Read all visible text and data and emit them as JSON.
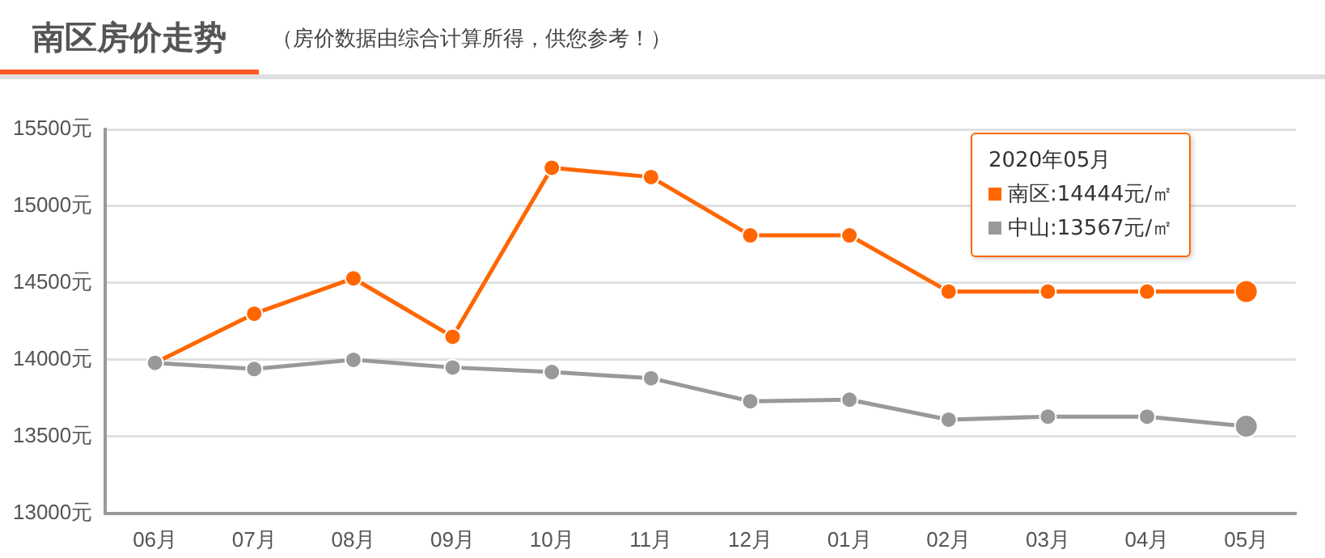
{
  "chart_data": {
    "type": "line",
    "title": "南区房价走势",
    "subtitle": "（房价数据由综合计算所得，供您参考！）",
    "categories": [
      "06月",
      "07月",
      "08月",
      "09月",
      "10月",
      "11月",
      "12月",
      "01月",
      "02月",
      "03月",
      "04月",
      "05月"
    ],
    "series": [
      {
        "name": "南区",
        "color": "#ff6600",
        "values": [
          13980,
          14300,
          14530,
          14150,
          15250,
          15190,
          14810,
          14810,
          14444,
          14444,
          14444,
          14444
        ]
      },
      {
        "name": "中山",
        "color": "#999999",
        "values": [
          13980,
          13940,
          14000,
          13950,
          13920,
          13880,
          13730,
          13740,
          13610,
          13630,
          13630,
          13567
        ]
      }
    ],
    "ylim": [
      13000,
      15500
    ],
    "yticks": [
      {
        "value": 13000,
        "label": "13000元"
      },
      {
        "value": 13500,
        "label": "13500元"
      },
      {
        "value": 14000,
        "label": "14000元"
      },
      {
        "value": 14500,
        "label": "14500元"
      },
      {
        "value": 15000,
        "label": "15000元"
      },
      {
        "value": 15500,
        "label": "15500元"
      }
    ],
    "grid": "y",
    "legend": "top right",
    "marker": "circle",
    "line_style": "solid",
    "annotations": [
      "2020年05月",
      ":14444元/㎡",
      ":13567元/㎡"
    ]
  }
}
